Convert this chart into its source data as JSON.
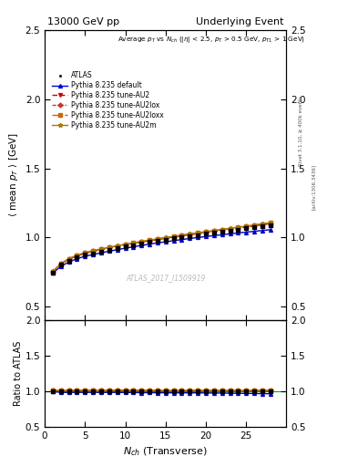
{
  "title_left": "13000 GeV pp",
  "title_right": "Underlying Event",
  "watermark": "ATLAS_2017_I1509919",
  "right_label_top": "Rivet 3.1.10, ≥ 400k events",
  "right_label_bottom": "[arXiv:1306.3436]",
  "xlim": [
    0,
    30
  ],
  "ylim_main": [
    0.4,
    2.5
  ],
  "ylim_ratio": [
    0.5,
    2.0
  ],
  "yticks_main": [
    0.5,
    1.0,
    1.5,
    2.0,
    2.5
  ],
  "yticks_ratio": [
    0.5,
    1.0,
    1.5,
    2.0
  ],
  "xticks": [
    0,
    5,
    10,
    15,
    20,
    25
  ],
  "nch": [
    1,
    2,
    3,
    4,
    5,
    6,
    7,
    8,
    9,
    10,
    11,
    12,
    13,
    14,
    15,
    16,
    17,
    18,
    19,
    20,
    21,
    22,
    23,
    24,
    25,
    26,
    27,
    28
  ],
  "data_ATLAS": [
    0.74,
    0.8,
    0.83,
    0.855,
    0.872,
    0.885,
    0.898,
    0.91,
    0.921,
    0.933,
    0.944,
    0.955,
    0.965,
    0.975,
    0.984,
    0.993,
    1.001,
    1.009,
    1.017,
    1.025,
    1.033,
    1.041,
    1.049,
    1.057,
    1.065,
    1.073,
    1.081,
    1.089
  ],
  "data_default": [
    0.74,
    0.79,
    0.82,
    0.845,
    0.862,
    0.875,
    0.887,
    0.899,
    0.91,
    0.921,
    0.931,
    0.94,
    0.95,
    0.959,
    0.967,
    0.975,
    0.983,
    0.991,
    0.998,
    1.005,
    1.012,
    1.018,
    1.025,
    1.031,
    1.037,
    1.043,
    1.049,
    1.055
  ],
  "data_AU2": [
    0.75,
    0.805,
    0.84,
    0.865,
    0.883,
    0.898,
    0.91,
    0.922,
    0.933,
    0.944,
    0.954,
    0.964,
    0.974,
    0.983,
    0.992,
    1.001,
    1.01,
    1.018,
    1.026,
    1.034,
    1.042,
    1.05,
    1.058,
    1.066,
    1.074,
    1.082,
    1.09,
    1.098
  ],
  "data_AU2lox": [
    0.752,
    0.808,
    0.843,
    0.868,
    0.886,
    0.9,
    0.913,
    0.925,
    0.936,
    0.947,
    0.957,
    0.967,
    0.977,
    0.986,
    0.995,
    1.004,
    1.013,
    1.022,
    1.03,
    1.038,
    1.046,
    1.054,
    1.062,
    1.07,
    1.078,
    1.086,
    1.094,
    1.102
  ],
  "data_AU2loxx": [
    0.752,
    0.808,
    0.843,
    0.868,
    0.887,
    0.901,
    0.914,
    0.926,
    0.937,
    0.948,
    0.958,
    0.968,
    0.978,
    0.987,
    0.996,
    1.005,
    1.014,
    1.023,
    1.031,
    1.039,
    1.047,
    1.055,
    1.063,
    1.071,
    1.079,
    1.087,
    1.096,
    1.104
  ],
  "data_AU2m": [
    0.753,
    0.81,
    0.845,
    0.87,
    0.889,
    0.903,
    0.916,
    0.928,
    0.939,
    0.95,
    0.96,
    0.97,
    0.98,
    0.989,
    0.998,
    1.007,
    1.016,
    1.025,
    1.033,
    1.041,
    1.049,
    1.057,
    1.065,
    1.073,
    1.081,
    1.089,
    1.098,
    1.106
  ],
  "color_default": "#0000cc",
  "color_AU2": "#cc0000",
  "color_AU2lox": "#cc3333",
  "color_AU2loxx": "#cc6600",
  "color_AU2m": "#aa7700",
  "color_ATLAS": "#000000",
  "color_green": "#00aa00"
}
